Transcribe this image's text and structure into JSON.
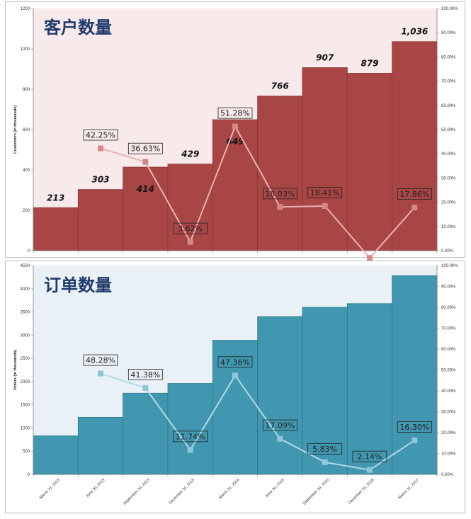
{
  "colors": {
    "customers_bar": "#a84545",
    "customers_bg": "#f8e9ea",
    "customers_line": "#eab2b2",
    "customers_marker": "#d68888",
    "orders_bar": "#4097af",
    "orders_bg": "#eaf1f6",
    "orders_line": "#b2d9e8",
    "orders_marker": "#90c6da",
    "title": "#1f3a6b"
  },
  "chart_data": [
    {
      "type": "bar",
      "title": "客户数量",
      "ylabel": "Customers (in thousands)",
      "ylim": [
        0,
        1200
      ],
      "yticks": [
        "0",
        "200",
        "400",
        "600",
        "800",
        "1000",
        "1200"
      ],
      "y2lim": [
        0,
        100
      ],
      "y2ticks": [
        "0.00%",
        "10.00%",
        "20.00%",
        "30.00%",
        "40.00%",
        "50.00%",
        "60.00%",
        "70.00%",
        "80.00%",
        "90.00%",
        "100.00%"
      ],
      "categories": [
        "March 31, 2015",
        "June 30, 2015",
        "September 30, 2015",
        "December 31, 2015",
        "March 31, 2016",
        "June 30, 2016",
        "September 30, 2016",
        "December 31, 2016",
        "March 31, 2017"
      ],
      "values": [
        213,
        303,
        414,
        429,
        649,
        766,
        907,
        879,
        1036
      ],
      "value_labels": [
        "213",
        "303",
        "414",
        "429",
        "649",
        "766",
        "907",
        "879",
        "1,036"
      ],
      "growth": [
        null,
        42.25,
        36.63,
        3.62,
        51.28,
        18.03,
        18.41,
        -3.0,
        17.86
      ],
      "growth_labels": [
        null,
        "42.25%",
        "36.63%",
        "3.62%",
        "51.28%",
        "18.03%",
        "18.41%",
        null,
        "17.86%"
      ]
    },
    {
      "type": "bar",
      "title": "订单数量",
      "ylabel": "Orders (in thousands)",
      "ylim": [
        0,
        4500
      ],
      "yticks": [
        "0",
        "500",
        "1000",
        "1500",
        "2000",
        "2500",
        "3000",
        "3500",
        "4000",
        "4500"
      ],
      "y2lim": [
        0,
        100
      ],
      "y2ticks": [
        "0.00%",
        "10.00%",
        "20.00%",
        "30.00%",
        "40.00%",
        "50.00%",
        "60.00%",
        "70.00%",
        "80.00%",
        "90.00%",
        "100.00%"
      ],
      "categories": [
        "March 31, 2015",
        "June 30, 2015",
        "September 30, 2015",
        "December 31, 2015",
        "March 31, 2016",
        "June 30, 2016",
        "September 30, 2016",
        "December 31, 2016",
        "March 31, 2017"
      ],
      "values": [
        830,
        1230,
        1750,
        1960,
        2890,
        3400,
        3600,
        3680,
        4280
      ],
      "growth": [
        null,
        48.28,
        41.38,
        11.74,
        47.36,
        17.09,
        5.83,
        2.14,
        16.3
      ],
      "growth_labels": [
        null,
        "48.28%",
        "41.38%",
        "11.74%",
        "47.36%",
        "17.09%",
        "5.83%",
        "2.14%",
        "16.30%"
      ]
    }
  ]
}
